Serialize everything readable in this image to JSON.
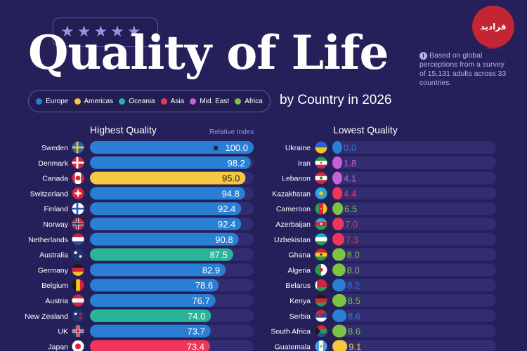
{
  "header": {
    "title": "Quality of Life",
    "subtitle": "by Country in 2026",
    "note": "Based on global perceptions from a survey of 15,131 adults across 33 countries.",
    "logo_text": "فرادید",
    "logo_sub": "fararu"
  },
  "legend": [
    {
      "label": "Europe",
      "color": "#2a7fd4"
    },
    {
      "label": "Americas",
      "color": "#f5c842"
    },
    {
      "label": "Oceania",
      "color": "#2ab59a"
    },
    {
      "label": "Asia",
      "color": "#f0355a"
    },
    {
      "label": "Mid. East",
      "color": "#c660d8"
    },
    {
      "label": "Africa",
      "color": "#7cc343"
    }
  ],
  "colors": {
    "Europe": "#2a7fd4",
    "Americas": "#f5c842",
    "Oceania": "#2ab59a",
    "Asia": "#f0355a",
    "Mid. East": "#c660d8",
    "Africa": "#7cc343",
    "track": "#322c70"
  },
  "chart_data": [
    {
      "type": "bar",
      "title": "Highest Quality",
      "value_label": "Relative Index",
      "xlim": [
        0,
        100
      ],
      "categories": [
        "Sweden",
        "Denmark",
        "Canada",
        "Switzerland",
        "Finland",
        "Norway",
        "Netherlands",
        "Australia",
        "Germany",
        "Belgium",
        "Austria",
        "New Zealand",
        "UK",
        "Japan"
      ],
      "values": [
        100.0,
        98.2,
        95.0,
        94.8,
        92.4,
        92.4,
        90.8,
        87.5,
        82.9,
        78.6,
        76.7,
        74.0,
        73.7,
        73.4
      ],
      "value_text": [
        "100.0",
        "98.2",
        "95.0",
        "94.8",
        "92.4",
        "92.4",
        "90.8",
        "87.5",
        "82.9",
        "78.6",
        "76.7",
        "74.0",
        "73.7",
        "73.4"
      ],
      "regions": [
        "Europe",
        "Europe",
        "Americas",
        "Europe",
        "Europe",
        "Europe",
        "Europe",
        "Oceania",
        "Europe",
        "Europe",
        "Europe",
        "Oceania",
        "Europe",
        "Asia"
      ],
      "flags": [
        "flag-sweden",
        "flag-denmark",
        "flag-canada",
        "flag-switzerland",
        "flag-finland",
        "flag-norway",
        "flag-netherlands",
        "flag-australia",
        "flag-germany",
        "flag-belgium",
        "flag-austria",
        "flag-new-zealand",
        "flag-uk",
        "flag-japan"
      ],
      "top_marker": "★"
    },
    {
      "type": "bar",
      "title": "Lowest Quality",
      "xlim": [
        0,
        100
      ],
      "categories": [
        "Ukraine",
        "Iran",
        "Lebanon",
        "Kazakhstan",
        "Cameroon",
        "Azerbaijan",
        "Uzbekistan",
        "Ghana",
        "Algeria",
        "Belarus",
        "Kenya",
        "Serbia",
        "South Africa",
        "Guatemala"
      ],
      "values": [
        0.0,
        1.8,
        4.1,
        4.4,
        6.5,
        7.0,
        7.3,
        8.0,
        8.0,
        8.2,
        8.5,
        8.6,
        8.6,
        9.1
      ],
      "value_text": [
        "0.0",
        "1.8",
        "4.1",
        "4.4",
        "6.5",
        "7.0",
        "7.3",
        "8.0",
        "8.0",
        "8.2",
        "8.5",
        "8.6",
        "8.6",
        "9.1"
      ],
      "regions": [
        "Europe",
        "Mid. East",
        "Mid. East",
        "Asia",
        "Africa",
        "Asia",
        "Asia",
        "Africa",
        "Africa",
        "Europe",
        "Africa",
        "Europe",
        "Africa",
        "Americas"
      ],
      "flags": [
        "flag-ukraine",
        "flag-iran",
        "flag-lebanon",
        "flag-kazakhstan",
        "flag-cameroon",
        "flag-azerbaijan",
        "flag-uzbekistan",
        "flag-ghana",
        "flag-algeria",
        "flag-belarus",
        "flag-kenya",
        "flag-serbia",
        "flag-south-africa",
        "flag-guatemala"
      ]
    }
  ]
}
